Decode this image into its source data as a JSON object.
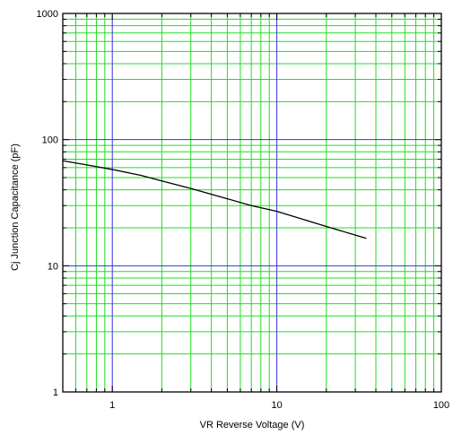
{
  "chart_data": {
    "type": "line",
    "xscale": "log",
    "yscale": "log",
    "xlim": [
      0.5,
      100
    ],
    "ylim": [
      1,
      1000
    ],
    "xlabel": "VR    Reverse Voltage   (V)",
    "ylabel": "Cj    Junction Capacitance   (pF)",
    "x_tick_labels": [
      "1",
      "10",
      "100"
    ],
    "y_tick_labels": [
      "1",
      "10",
      "100",
      "1000"
    ],
    "grid": true,
    "minor_grid_color": "#22dd22",
    "major_grid_color": "#3333dd",
    "frame_color": "#000000",
    "series": [
      {
        "color": "#000000",
        "points": [
          {
            "x": 0.5,
            "y": 68
          },
          {
            "x": 0.7,
            "y": 63
          },
          {
            "x": 1,
            "y": 58
          },
          {
            "x": 1.5,
            "y": 52
          },
          {
            "x": 2,
            "y": 47
          },
          {
            "x": 3,
            "y": 41
          },
          {
            "x": 5,
            "y": 34
          },
          {
            "x": 7,
            "y": 30
          },
          {
            "x": 10,
            "y": 27
          },
          {
            "x": 15,
            "y": 23
          },
          {
            "x": 20,
            "y": 20.5
          },
          {
            "x": 30,
            "y": 17.5
          },
          {
            "x": 35,
            "y": 16.5
          }
        ]
      }
    ]
  }
}
